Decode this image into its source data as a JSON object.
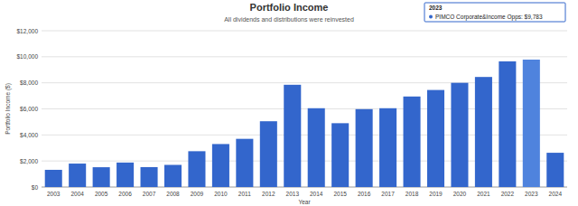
{
  "chart_data": {
    "type": "bar",
    "title": "Portfolio Income",
    "subtitle": "All dividends and distributions were reinvested",
    "x_label": "Year",
    "y_label": "Portfolio Income ($)",
    "categories": [
      "2003",
      "2004",
      "2005",
      "2006",
      "2007",
      "2008",
      "2009",
      "2010",
      "2011",
      "2012",
      "2013",
      "2014",
      "2015",
      "2016",
      "2017",
      "2018",
      "2019",
      "2020",
      "2021",
      "2022",
      "2023",
      "2024"
    ],
    "values": [
      1320,
      1800,
      1520,
      1880,
      1530,
      1700,
      2750,
      3300,
      3700,
      5050,
      7850,
      6050,
      4900,
      5980,
      6050,
      6950,
      7450,
      8000,
      8450,
      9650,
      9783,
      2630
    ],
    "colors": [
      "#3366cc",
      "#3366cc",
      "#3366cc",
      "#3366cc",
      "#3366cc",
      "#3366cc",
      "#3366cc",
      "#3366cc",
      "#3366cc",
      "#3366cc",
      "#3366cc",
      "#3366cc",
      "#3366cc",
      "#3366cc",
      "#3366cc",
      "#3366cc",
      "#3366cc",
      "#3366cc",
      "#3366cc",
      "#3366cc",
      "#4f83dd",
      "#3366cc"
    ],
    "ylim": [
      0,
      12000
    ],
    "yticks": [
      {
        "value": 0,
        "label": "$0"
      },
      {
        "value": 2000,
        "label": "$2,000"
      },
      {
        "value": 4000,
        "label": "$4,000"
      },
      {
        "value": 6000,
        "label": "$6,000"
      },
      {
        "value": 8000,
        "label": "$8,000"
      },
      {
        "value": 10000,
        "label": "$10,000"
      },
      {
        "value": 12000,
        "label": "$12,000"
      }
    ],
    "grid": true,
    "annotations": [
      {
        "title": "2023",
        "text": "PIMCO Corporate&Income Opps: $9,783"
      }
    ]
  }
}
